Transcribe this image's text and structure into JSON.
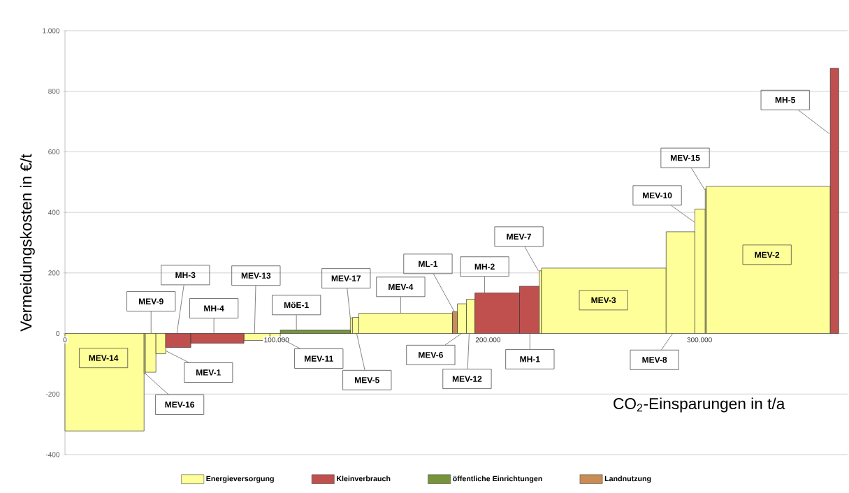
{
  "chart_data": {
    "type": "histogram",
    "xlabel": "CO$_{2}$-Einsparungen in t/a",
    "ylabel": "Vermeidungskosten in €/t",
    "bins": [
      0,
      37400,
      38000,
      43000,
      47600,
      59500,
      84600,
      96900,
      101800,
      134900,
      135900,
      138900,
      183200,
      185500,
      189800,
      193800,
      214900,
      224200,
      225300,
      284200,
      297800,
      302700,
      303200,
      361800,
      365800
    ],
    "series": [
      {
        "name": "Energieversorgung",
        "color": "#ffff99",
        "values": [
          -322,
          -132,
          -128,
          -67,
          null,
          null,
          -23,
          -12,
          null,
          51,
          53,
          67,
          null,
          98,
          113,
          null,
          null,
          207,
          216,
          336,
          411,
          478,
          486,
          null
        ]
      },
      {
        "name": "Kleinverbrauch",
        "color": "#c0504d",
        "values": [
          null,
          null,
          null,
          null,
          -46,
          -32,
          null,
          null,
          null,
          null,
          null,
          null,
          null,
          null,
          null,
          134,
          156,
          null,
          null,
          null,
          null,
          null,
          null,
          876
        ]
      },
      {
        "name": "öffentliche Einrichtungen",
        "color": "#77933c",
        "values": [
          null,
          null,
          null,
          null,
          null,
          null,
          null,
          null,
          11,
          null,
          null,
          null,
          null,
          null,
          null,
          null,
          null,
          null,
          null,
          null,
          null,
          null,
          null,
          null
        ]
      },
      {
        "name": "Landnutzung",
        "color": "#c98c55",
        "values": [
          null,
          null,
          null,
          null,
          null,
          null,
          null,
          null,
          null,
          null,
          null,
          null,
          72,
          null,
          null,
          null,
          null,
          null,
          null,
          null,
          null,
          null,
          null,
          null
        ]
      }
    ],
    "xlim": [
      0,
      370000
    ],
    "ylim": [
      -400,
      1000
    ],
    "xticks": [
      0,
      {
        "value": 100000,
        "label": "100.000"
      },
      {
        "value": 200000,
        "label": "200.000"
      },
      {
        "value": 300000,
        "label": "300.000"
      }
    ],
    "yticks": [
      -400,
      -200,
      0,
      200,
      400,
      600,
      800,
      {
        "value": 1000,
        "label": "1.000"
      }
    ],
    "grid": "y",
    "legend": "bottom",
    "annotations": [
      "MEV-14",
      {
        "text": "MEV-16",
        "x": 37700,
        "y": -131
      },
      {
        "text": "MEV-9",
        "x": 40700,
        "y": 0
      },
      {
        "text": "MEV-1",
        "x": 47900,
        "y": -58
      },
      {
        "text": "MH-3",
        "x": 52900,
        "y": 0
      },
      {
        "text": "MH-4",
        "x": 70400,
        "y": 0
      },
      {
        "text": "MEV-13",
        "x": 89600,
        "y": 0
      },
      {
        "text": "MEV-11",
        "x": 101500,
        "y": -14
      },
      {
        "text": "MöE-1",
        "x": 109400,
        "y": 11
      },
      {
        "text": "MEV-17",
        "x": 134900,
        "y": 51
      },
      {
        "text": "MEV-5",
        "x": 137900,
        "y": 0
      },
      {
        "text": "MEV-4",
        "x": 158700,
        "y": 67
      },
      {
        "text": "ML-1",
        "x": 184100,
        "y": 72
      },
      {
        "text": "MEV-6",
        "x": 187500,
        "y": 0
      },
      {
        "text": "MEV-12",
        "x": 191100,
        "y": 0
      },
      {
        "text": "MH-2",
        "x": 198400,
        "y": 134
      },
      {
        "text": "MH-1",
        "x": 219800,
        "y": 0
      },
      {
        "text": "MEV-7",
        "x": 223800,
        "y": 207
      },
      "MEV-3",
      {
        "text": "MEV-8",
        "x": 287300,
        "y": 0
      },
      {
        "text": "MEV-10",
        "x": 297500,
        "y": 368
      },
      {
        "text": "MEV-15",
        "x": 302500,
        "y": 474
      },
      "MEV-2",
      {
        "text": "MH-5",
        "x": 361300,
        "y": 660
      }
    ]
  }
}
